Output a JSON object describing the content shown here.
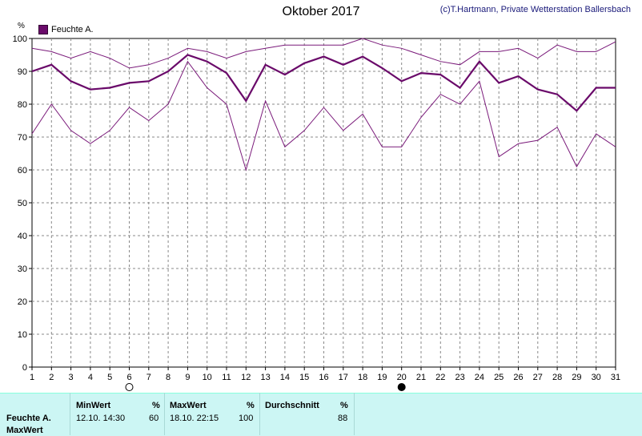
{
  "chart_data": {
    "type": "line",
    "title": "Oktober 2017",
    "credit": "(c)T.Hartmann, Private Wetterstation Ballersbach",
    "unit": "%",
    "ylim": [
      0,
      100
    ],
    "yticks": [
      0,
      10,
      20,
      30,
      40,
      50,
      60,
      70,
      80,
      90,
      100
    ],
    "x": [
      1,
      2,
      3,
      4,
      5,
      6,
      7,
      8,
      9,
      10,
      11,
      12,
      13,
      14,
      15,
      16,
      17,
      18,
      19,
      20,
      21,
      22,
      23,
      24,
      25,
      26,
      27,
      28,
      29,
      30,
      31
    ],
    "grid": true,
    "legend": {
      "label": "Feuchte A.",
      "position": "top-left",
      "color": "#6a0a6a"
    },
    "series": [
      {
        "role": "max",
        "color": "#7a1a7a",
        "values": [
          97,
          96,
          94,
          96,
          94,
          91,
          92,
          94,
          97,
          96,
          94,
          96,
          97,
          98,
          98,
          98,
          98,
          100,
          98,
          97,
          95,
          93,
          92,
          96,
          96,
          97,
          94,
          98,
          96,
          96,
          99
        ]
      },
      {
        "role": "avg",
        "color": "#6a0a6a",
        "values": [
          90,
          92,
          87,
          84.5,
          85,
          86.5,
          87,
          90,
          95,
          93,
          89.5,
          81,
          92,
          89,
          92.5,
          94.5,
          92,
          94.5,
          91,
          87,
          89.5,
          89,
          85,
          93,
          86.5,
          88.5,
          84.5,
          83,
          78,
          85,
          85
        ]
      },
      {
        "role": "min",
        "color": "#7a1a7a",
        "values": [
          71,
          80,
          72,
          68,
          72,
          79,
          75,
          80,
          93,
          85,
          80,
          60,
          81,
          67,
          72,
          79,
          72,
          77,
          67,
          67,
          76,
          83,
          80,
          87,
          64,
          68,
          69,
          73,
          61,
          71,
          67
        ]
      }
    ],
    "moon_markers": [
      {
        "day": 6,
        "phase": "full"
      },
      {
        "day": 20,
        "phase": "new"
      }
    ]
  },
  "table": {
    "headers": {
      "min_label": "MinWert",
      "min_unit": "%",
      "max_label": "MaxWert",
      "max_unit": "%",
      "avg_label": "Durchschnitt",
      "avg_unit": "%"
    },
    "row": {
      "name": "Feuchte A.",
      "min_time": "12.10.  14:30",
      "min_value": "60",
      "max_time": "18.10.  22:15",
      "max_value": "100",
      "avg_value": "88"
    },
    "row2_label": "MaxWert"
  }
}
